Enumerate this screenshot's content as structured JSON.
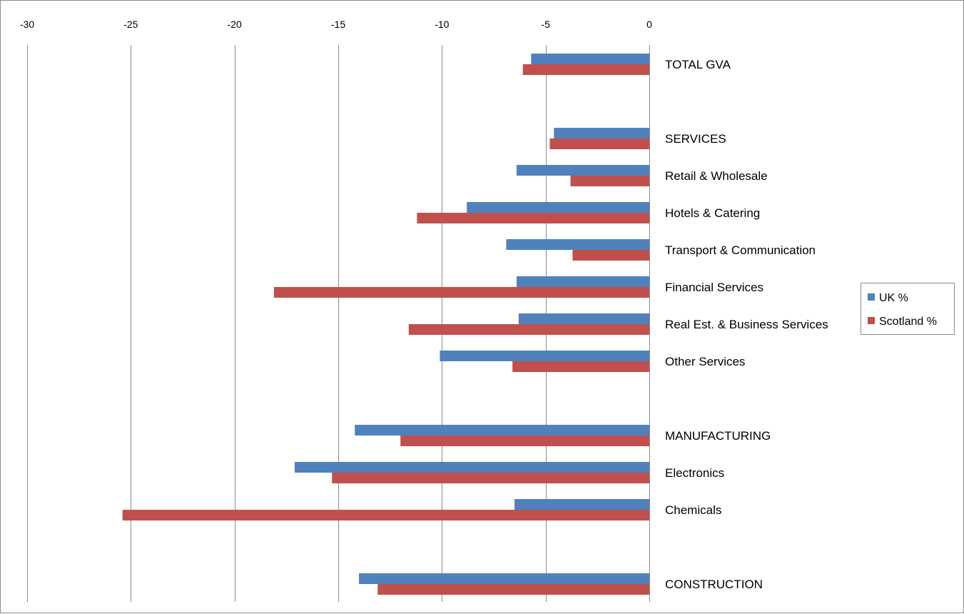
{
  "chart_data": {
    "type": "bar",
    "orientation": "horizontal",
    "title": "",
    "xlabel": "",
    "ylabel": "",
    "xlim": [
      -30,
      0
    ],
    "x_ticks": [
      -30,
      -25,
      -20,
      -15,
      -10,
      -5,
      0
    ],
    "x_axis_position": "top",
    "grid": "vertical major gridlines",
    "legend_position": "right",
    "categories": [
      "TOTAL GVA",
      "",
      "SERVICES",
      "Retail & Wholesale",
      "Hotels & Catering",
      "Transport & Communication",
      "Financial Services",
      "Real Est. & Business Services",
      "Other Services",
      "",
      "MANUFACTURING",
      "Electronics",
      "Chemicals",
      "",
      "CONSTRUCTION"
    ],
    "series": [
      {
        "name": "UK %",
        "color": "#4f81bd",
        "values": [
          -5.7,
          null,
          -4.6,
          -6.4,
          -8.8,
          -6.9,
          -6.4,
          -6.3,
          -10.1,
          null,
          -14.2,
          -17.1,
          -6.5,
          null,
          -14
        ]
      },
      {
        "name": "Scotland %",
        "color": "#c0504d",
        "values": [
          -6.1,
          null,
          -4.8,
          -3.8,
          -11.2,
          -3.7,
          -18.1,
          -11.6,
          -6.6,
          null,
          -12,
          -15.3,
          -25.4,
          null,
          -13.1
        ]
      }
    ]
  }
}
